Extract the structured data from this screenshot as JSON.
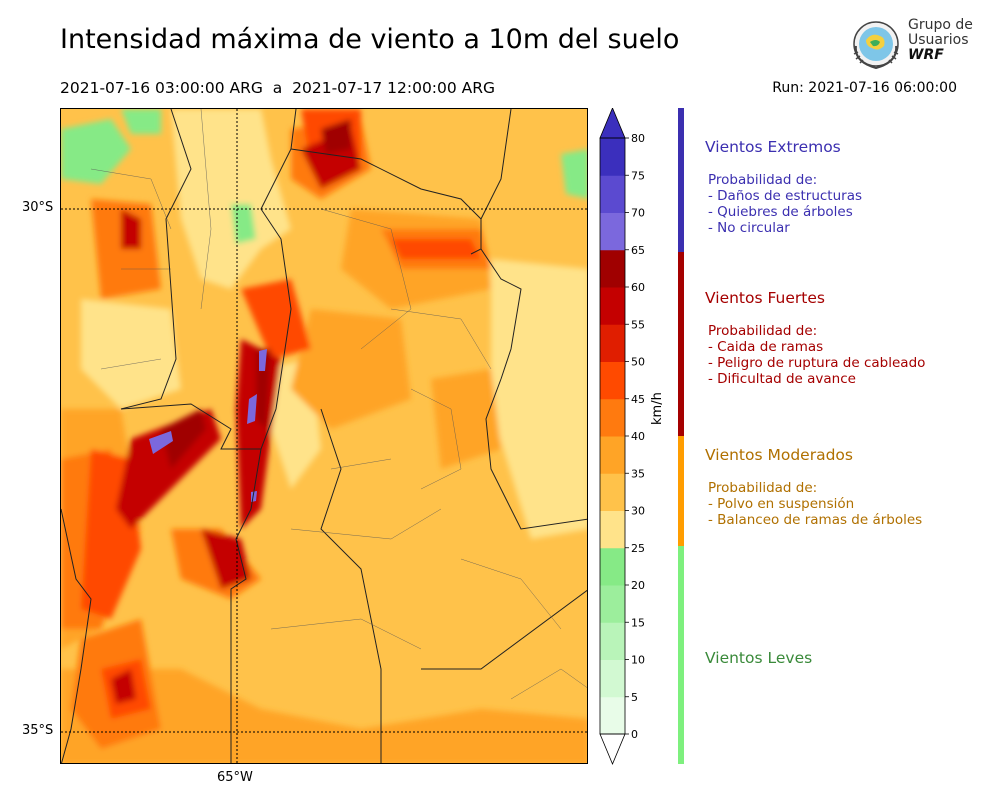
{
  "title": "Intensidad máxima de viento a 10m del suelo",
  "period": "2021-07-16 03:00:00 ARG  a  2021-07-17 12:00:00 ARG",
  "run": "Run: 2021-07-16 06:00:00",
  "logo": {
    "line1": "Grupo de",
    "line2": "Usuarios",
    "line3": "WRF"
  },
  "map": {
    "lat_labels": [
      "30°S",
      "35°S"
    ],
    "lon_labels": [
      "65°W"
    ]
  },
  "colorbar": {
    "unit": "km/h",
    "ticks": [
      "0",
      "5",
      "10",
      "15",
      "20",
      "25",
      "30",
      "35",
      "40",
      "45",
      "50",
      "55",
      "60",
      "65",
      "70",
      "75",
      "80"
    ],
    "colors": [
      "#e8fce8",
      "#d2f9d2",
      "#b9f4b9",
      "#9cee9c",
      "#86ea86",
      "#ffe38a",
      "#ffc24a",
      "#ffa426",
      "#ff7a0f",
      "#ff4a00",
      "#e01e00",
      "#c40000",
      "#a00000",
      "#7b68dd",
      "#5b4ad0",
      "#3b2fbd"
    ]
  },
  "legend": {
    "categories": [
      {
        "name": "Vientos Extremos",
        "color": "#3b2fb0",
        "lines": [
          "Probabilidad de:",
          "- Daños de estructuras",
          "- Quiebres de árboles",
          "- No circular"
        ]
      },
      {
        "name": "Vientos Fuertes",
        "color": "#a50000",
        "lines": [
          "Probabilidad de:",
          "- Caida de ramas",
          "- Peligro de ruptura de cableado",
          "- Dificultad de avance"
        ]
      },
      {
        "name": "Vientos Moderados",
        "color": "#b07000",
        "lines": [
          "Probabilidad de:",
          "- Polvo en suspensión",
          "- Balanceo de ramas de árboles"
        ]
      },
      {
        "name": "Vientos Leves",
        "color": "#3a8a3a",
        "lines": []
      }
    ],
    "bar_colors": [
      "#3b2fb0",
      "#a50000",
      "#ff9d00",
      "#7ef07e"
    ]
  }
}
